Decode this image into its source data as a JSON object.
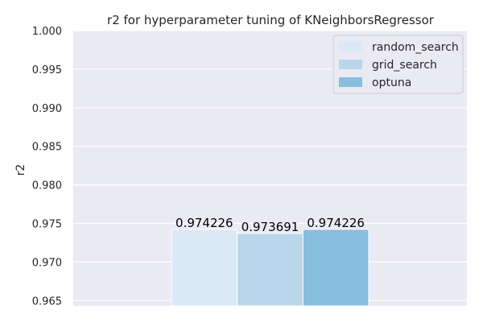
{
  "chart_data": {
    "type": "bar",
    "title": "r2 for hyperparameter tuning of KNeighborsRegressor",
    "xlabel": "",
    "ylabel": "r2",
    "ylim": [
      0.9643,
      1.0
    ],
    "yticks": [
      "0.965",
      "0.970",
      "0.975",
      "0.980",
      "0.985",
      "0.990",
      "0.995",
      "1.000"
    ],
    "grid": true,
    "legend_position": "top-right",
    "series": [
      {
        "name": "random_search",
        "value": 0.974226,
        "label": "0.974226",
        "color": "#dbe9f6"
      },
      {
        "name": "grid_search",
        "value": 0.973691,
        "label": "0.973691",
        "color": "#bad6eb"
      },
      {
        "name": "optuna",
        "value": 0.974226,
        "label": "0.974226",
        "color": "#89bedc"
      }
    ],
    "colors": {
      "background": "#eaeaf2",
      "grid": "#ffffff",
      "text": "#262626",
      "bar_label": "#000000"
    }
  }
}
